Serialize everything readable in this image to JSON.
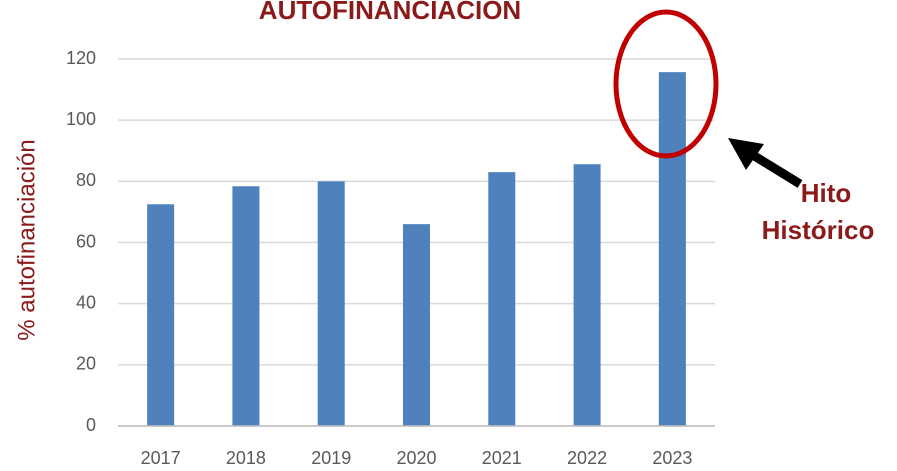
{
  "chart_data": {
    "type": "bar",
    "title": "AUTOFINANCIACION",
    "y_label": "% autofinanciación",
    "categories": [
      "2017",
      "2018",
      "2019",
      "2020",
      "2021",
      "2022",
      "2023"
    ],
    "values": [
      72.5,
      78.4,
      80,
      66,
      83,
      85.6,
      115.7
    ],
    "color": "#4f81bd",
    "ylim": [
      0,
      120
    ],
    "yticks": [
      0,
      20,
      40,
      60,
      80,
      100,
      120
    ],
    "grid": true,
    "annotation": [
      "Hito",
      "Histórico"
    ]
  }
}
